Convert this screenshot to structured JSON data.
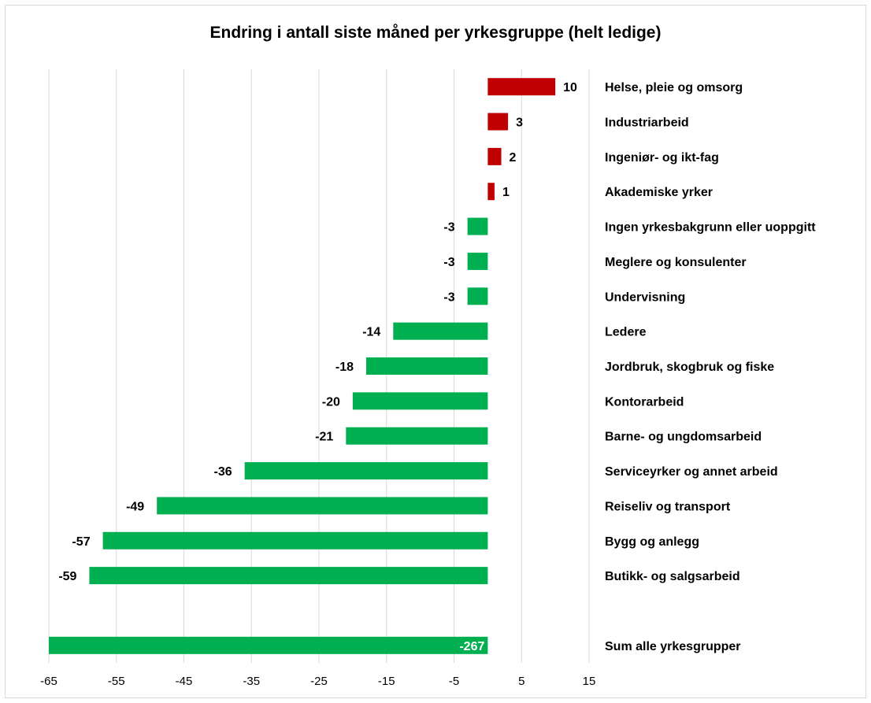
{
  "chart_data": {
    "type": "bar",
    "orientation": "horizontal",
    "title": "Endring i antall siste måned per yrkesgruppe (helt ledige)",
    "categories": [
      "Helse, pleie og omsorg",
      "Industriarbeid",
      "Ingeniør- og ikt-fag",
      "Akademiske yrker",
      "Ingen yrkesbakgrunn eller uoppgitt",
      "Meglere og konsulenter",
      "Undervisning",
      "Ledere",
      "Jordbruk, skogbruk og fiske",
      "Kontorarbeid",
      "Barne- og ungdomsarbeid",
      "Serviceyrker og annet arbeid",
      "Reiseliv og transport",
      "Bygg og anlegg",
      "Butikk- og salgsarbeid",
      "",
      "Sum alle yrkesgrupper"
    ],
    "values": [
      10,
      3,
      2,
      1,
      -3,
      -3,
      -3,
      -14,
      -18,
      -20,
      -21,
      -36,
      -49,
      -57,
      -59,
      null,
      -267
    ],
    "data_labels": [
      "10",
      "3",
      "2",
      "1",
      "-3",
      "-3",
      "-3",
      "-14",
      "-18",
      "-20",
      "-21",
      "-36",
      "-49",
      "-57",
      "-59",
      "",
      "-267"
    ],
    "xlim": [
      -65,
      15
    ],
    "xticks": [
      "-65",
      "-55",
      "-45",
      "-35",
      "-25",
      "-15",
      "-5",
      "5",
      "15"
    ],
    "xtick_values": [
      -65,
      -55,
      -45,
      -35,
      -25,
      -15,
      -5,
      5,
      15
    ],
    "grid": true,
    "colors": {
      "positive": "#c00000",
      "negative": "#00b050",
      "grid": "#d9d9d9",
      "total_label": "#ffffff"
    }
  }
}
